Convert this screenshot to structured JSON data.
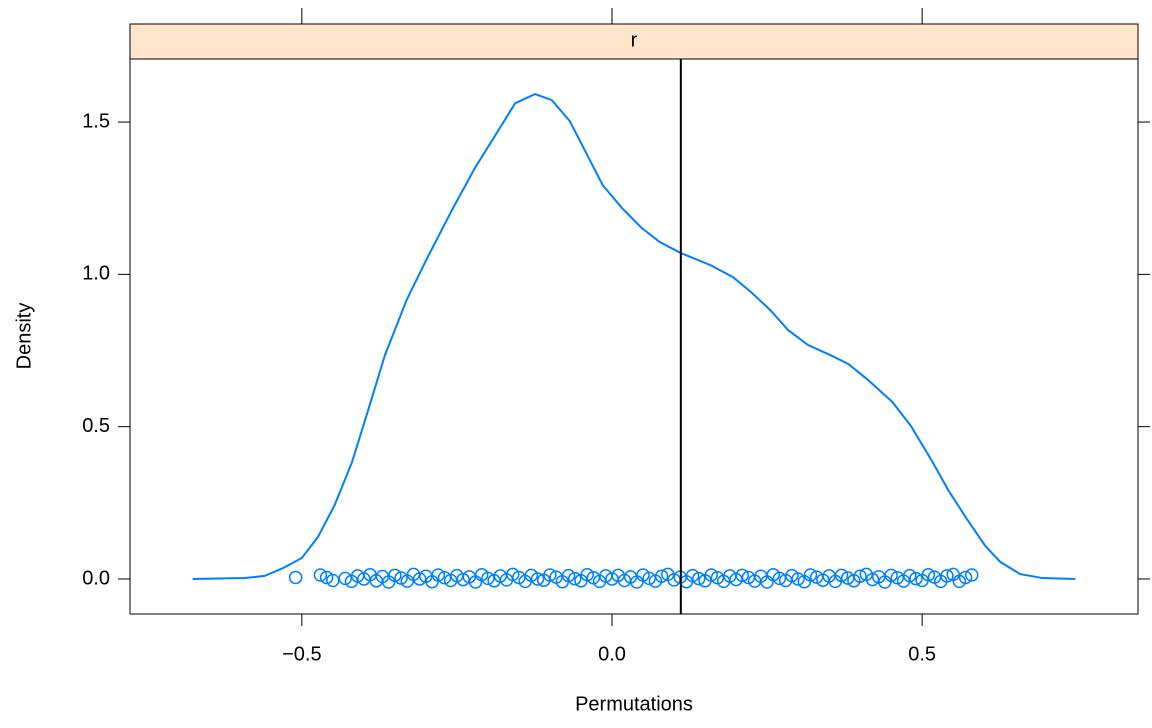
{
  "chart_data": {
    "type": "density",
    "strip_label": "r",
    "xlabel": "Permutations",
    "ylabel": "Density",
    "color": "#0080ff",
    "strip_color": "#ffe5cc",
    "xlim": [
      -0.777,
      0.848
    ],
    "ylim": [
      -0.115,
      1.707
    ],
    "xticks": [
      {
        "value": -0.5,
        "label": "−0.5"
      },
      {
        "value": 0,
        "label": "0.0"
      },
      {
        "value": 0.5,
        "label": "0.5"
      }
    ],
    "yticks": [
      {
        "value": 0,
        "label": "0.0"
      },
      {
        "value": 0.5,
        "label": "0.5"
      },
      {
        "value": 1,
        "label": "1.0"
      },
      {
        "value": 1.5,
        "label": "1.5"
      }
    ],
    "reference_line": 0.111,
    "curve": {
      "x": [
        -0.676,
        -0.592,
        -0.56,
        -0.53,
        -0.5,
        -0.474,
        -0.447,
        -0.419,
        -0.394,
        -0.366,
        -0.331,
        -0.297,
        -0.258,
        -0.221,
        -0.184,
        -0.156,
        -0.124,
        -0.097,
        -0.068,
        -0.044,
        -0.015,
        0.016,
        0.048,
        0.077,
        0.111,
        0.158,
        0.195,
        0.224,
        0.255,
        0.284,
        0.316,
        0.352,
        0.381,
        0.413,
        0.452,
        0.482,
        0.516,
        0.542,
        0.573,
        0.602,
        0.626,
        0.658,
        0.694,
        0.747
      ],
      "y": [
        0,
        0.003,
        0.01,
        0.036,
        0.069,
        0.138,
        0.243,
        0.384,
        0.548,
        0.735,
        0.916,
        1.057,
        1.211,
        1.349,
        1.47,
        1.562,
        1.592,
        1.572,
        1.503,
        1.408,
        1.293,
        1.218,
        1.152,
        1.106,
        1.07,
        1.031,
        0.991,
        0.942,
        0.883,
        0.817,
        0.768,
        0.735,
        0.706,
        0.653,
        0.581,
        0.502,
        0.387,
        0.292,
        0.194,
        0.108,
        0.056,
        0.016,
        0.003,
        0
      ]
    },
    "points": {
      "x": [
        -0.51,
        -0.47,
        -0.46,
        -0.45,
        -0.43,
        -0.42,
        -0.41,
        -0.4,
        -0.39,
        -0.38,
        -0.37,
        -0.36,
        -0.35,
        -0.34,
        -0.33,
        -0.32,
        -0.31,
        -0.3,
        -0.29,
        -0.28,
        -0.27,
        -0.26,
        -0.25,
        -0.24,
        -0.23,
        -0.22,
        -0.21,
        -0.2,
        -0.19,
        -0.18,
        -0.17,
        -0.16,
        -0.15,
        -0.14,
        -0.13,
        -0.12,
        -0.11,
        -0.1,
        -0.09,
        -0.08,
        -0.07,
        -0.06,
        -0.05,
        -0.04,
        -0.03,
        -0.02,
        -0.01,
        0,
        0.01,
        0.02,
        0.03,
        0.04,
        0.05,
        0.06,
        0.07,
        0.08,
        0.09,
        0.1,
        0.11,
        0.12,
        0.13,
        0.14,
        0.15,
        0.16,
        0.17,
        0.18,
        0.19,
        0.2,
        0.21,
        0.22,
        0.23,
        0.24,
        0.25,
        0.26,
        0.27,
        0.28,
        0.29,
        0.3,
        0.31,
        0.32,
        0.33,
        0.34,
        0.35,
        0.36,
        0.37,
        0.38,
        0.39,
        0.4,
        0.41,
        0.42,
        0.43,
        0.44,
        0.45,
        0.46,
        0.47,
        0.48,
        0.49,
        0.5,
        0.51,
        0.52,
        0.53,
        0.54,
        0.55,
        0.56,
        0.57,
        0.58
      ],
      "y": [
        0.005,
        0.013,
        0.005,
        -0.005,
        0.002,
        -0.008,
        0.01,
        0.0,
        0.014,
        -0.006,
        0.008,
        -0.01,
        0.012,
        0.003,
        -0.007,
        0.015,
        0.0,
        0.009,
        -0.009,
        0.013,
        0.004,
        -0.005,
        0.011,
        -0.002,
        0.007,
        -0.01,
        0.014,
        0.002,
        -0.006,
        0.01,
        -0.003,
        0.015,
        0.005,
        -0.008,
        0.012,
        0.0,
        -0.004,
        0.013,
        0.006,
        -0.009,
        0.011,
        0.001,
        -0.006,
        0.014,
        0.004,
        -0.008,
        0.01,
        0.0,
        0.012,
        -0.005,
        0.007,
        -0.01,
        0.013,
        0.002,
        -0.007,
        0.009,
        0.015,
        -0.003,
        0.006,
        -0.009,
        0.011,
        0.001,
        -0.006,
        0.013,
        0.004,
        -0.008,
        0.01,
        -0.002,
        0.012,
        0.005,
        -0.007,
        0.009,
        -0.01,
        0.014,
        0.002,
        -0.005,
        0.011,
        0.0,
        -0.009,
        0.013,
        0.006,
        -0.004,
        0.01,
        -0.008,
        0.012,
        0.003,
        -0.006,
        0.009,
        0.015,
        -0.002,
        0.007,
        -0.01,
        0.012,
        0.004,
        -0.007,
        0.011,
        0.001,
        -0.005,
        0.014,
        0.006,
        -0.008,
        0.01,
        0.015,
        -0.008,
        0.005,
        0.013
      ]
    }
  }
}
